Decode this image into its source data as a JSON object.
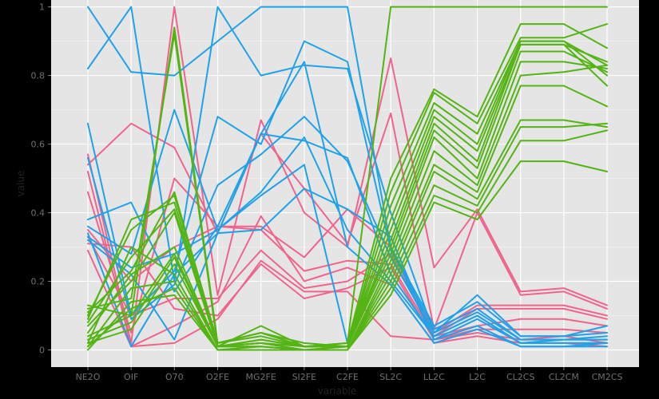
{
  "chart_data": {
    "type": "line",
    "subtype": "parallel-coordinates",
    "xlabel": "variable",
    "ylabel": "value",
    "categories": [
      "NE2O",
      "OIF",
      "O70",
      "O2FE",
      "MG2FE",
      "SI2FE",
      "C2FE",
      "SL2C",
      "LL2C",
      "L2C",
      "CL2CS",
      "CL2CM",
      "CM2CS"
    ],
    "ylim": [
      -0.05,
      1.02
    ],
    "yticks": [
      0,
      0.2,
      0.4,
      0.6,
      0.8,
      1
    ],
    "ytick_labels": [
      "0",
      "0.2",
      "0.4",
      "0.6",
      "0.8",
      "1"
    ],
    "grid": true,
    "legend": "none",
    "colors": {
      "background": "#e5e5e5",
      "grid": "#ffffff",
      "page": "#000000",
      "group_1": "#f0648c",
      "group_2": "#1fa2e8",
      "group_3": "#54b414"
    },
    "groups": [
      {
        "color": "#f0648c",
        "lines": [
          [
            0.57,
            0.02,
            1.0,
            0.16,
            0.67,
            0.4,
            0.3,
            0.85,
            0.24,
            0.41,
            0.17,
            0.18,
            0.13
          ],
          [
            0.54,
            0.66,
            0.59,
            0.34,
            0.63,
            0.47,
            0.31,
            0.69,
            0.06,
            0.4,
            0.16,
            0.17,
            0.12
          ],
          [
            0.46,
            0.05,
            0.5,
            0.36,
            0.36,
            0.27,
            0.41,
            0.3,
            0.05,
            0.13,
            0.13,
            0.13,
            0.1
          ],
          [
            0.35,
            0.2,
            0.3,
            0.36,
            0.35,
            0.23,
            0.26,
            0.25,
            0.04,
            0.12,
            0.12,
            0.12,
            0.09
          ],
          [
            0.33,
            0.1,
            0.15,
            0.15,
            0.29,
            0.18,
            0.2,
            0.28,
            0.04,
            0.07,
            0.09,
            0.09,
            0.07
          ],
          [
            0.31,
            0.3,
            0.12,
            0.1,
            0.25,
            0.15,
            0.18,
            0.24,
            0.03,
            0.06,
            0.06,
            0.06,
            0.05
          ],
          [
            0.29,
            0.01,
            0.02,
            0.09,
            0.26,
            0.17,
            0.17,
            0.04,
            0.03,
            0.05,
            0.03,
            0.04,
            0.02
          ],
          [
            0.52,
            0.01,
            0.07,
            0.14,
            0.39,
            0.2,
            0.24,
            0.19,
            0.02,
            0.04,
            0.02,
            0.02,
            0.01
          ]
        ]
      },
      {
        "color": "#1fa2e8",
        "lines": [
          [
            0.82,
            1.0,
            0.2,
            1.0,
            0.8,
            0.83,
            0.82,
            0.4,
            0.05,
            0.16,
            0.04,
            0.04,
            0.07
          ],
          [
            1.0,
            0.81,
            0.8,
            0.9,
            1.0,
            1.0,
            1.0,
            0.3,
            0.07,
            0.14,
            0.04,
            0.04,
            0.05
          ],
          [
            0.66,
            0.1,
            0.23,
            0.68,
            0.6,
            0.9,
            0.84,
            0.29,
            0.06,
            0.12,
            0.03,
            0.03,
            0.04
          ],
          [
            0.56,
            0.09,
            0.19,
            0.48,
            0.57,
            0.68,
            0.55,
            0.27,
            0.05,
            0.11,
            0.03,
            0.03,
            0.03
          ],
          [
            0.38,
            0.43,
            0.17,
            0.36,
            0.63,
            0.61,
            0.56,
            0.22,
            0.04,
            0.1,
            0.02,
            0.03,
            0.03
          ],
          [
            0.36,
            0.28,
            0.7,
            0.35,
            0.46,
            0.62,
            0.35,
            0.2,
            0.04,
            0.1,
            0.02,
            0.02,
            0.02
          ],
          [
            0.34,
            0.01,
            0.22,
            0.34,
            0.35,
            0.47,
            0.41,
            0.33,
            0.03,
            0.09,
            0.02,
            0.02,
            0.02
          ],
          [
            0.33,
            0.24,
            0.28,
            0.35,
            0.45,
            0.54,
            0.02,
            0.3,
            0.03,
            0.07,
            0.01,
            0.01,
            0.02
          ],
          [
            0.32,
            0.22,
            0.03,
            0.34,
            0.63,
            0.84,
            0.3,
            0.19,
            0.02,
            0.06,
            0.01,
            0.01,
            0.01
          ]
        ]
      },
      {
        "color": "#54b414",
        "lines": [
          [
            0.13,
            0.1,
            0.94,
            0.02,
            0.05,
            0.01,
            0.02,
            1.0,
            1.0,
            1.0,
            1.0,
            1.0,
            1.0
          ],
          [
            0.12,
            0.15,
            0.92,
            0.01,
            0.07,
            0.01,
            0.02,
            0.5,
            0.76,
            0.68,
            0.95,
            0.95,
            0.88
          ],
          [
            0.11,
            0.23,
            0.46,
            0.02,
            0.05,
            0.02,
            0.01,
            0.46,
            0.75,
            0.66,
            0.91,
            0.91,
            0.95
          ],
          [
            0.1,
            0.35,
            0.45,
            0.02,
            0.04,
            0.01,
            0.01,
            0.42,
            0.72,
            0.63,
            0.9,
            0.9,
            0.83
          ],
          [
            0.09,
            0.38,
            0.43,
            0.01,
            0.03,
            0.01,
            0.01,
            0.38,
            0.7,
            0.6,
            0.9,
            0.9,
            0.8
          ],
          [
            0.08,
            0.27,
            0.41,
            0.01,
            0.03,
            0.01,
            0.01,
            0.35,
            0.68,
            0.58,
            0.89,
            0.89,
            0.84
          ],
          [
            0.07,
            0.2,
            0.4,
            0.01,
            0.02,
            0.01,
            0.01,
            0.32,
            0.66,
            0.55,
            0.89,
            0.89,
            0.77
          ],
          [
            0.05,
            0.22,
            0.3,
            0.01,
            0.02,
            0.0,
            0.01,
            0.3,
            0.64,
            0.53,
            0.87,
            0.87,
            0.81
          ],
          [
            0.04,
            0.1,
            0.28,
            0.01,
            0.02,
            0.0,
            0.01,
            0.28,
            0.62,
            0.5,
            0.84,
            0.84,
            0.82
          ],
          [
            0.03,
            0.08,
            0.27,
            0.01,
            0.01,
            0.0,
            0.0,
            0.26,
            0.58,
            0.48,
            0.8,
            0.81,
            0.83
          ],
          [
            0.02,
            0.06,
            0.25,
            0.01,
            0.01,
            0.0,
            0.0,
            0.24,
            0.54,
            0.46,
            0.77,
            0.77,
            0.71
          ],
          [
            0.02,
            0.3,
            0.22,
            0.0,
            0.01,
            0.0,
            0.0,
            0.22,
            0.52,
            0.44,
            0.67,
            0.67,
            0.65
          ],
          [
            0.01,
            0.18,
            0.2,
            0.0,
            0.0,
            0.0,
            0.0,
            0.2,
            0.48,
            0.42,
            0.65,
            0.65,
            0.66
          ],
          [
            0.01,
            0.12,
            0.18,
            0.0,
            0.0,
            0.0,
            0.0,
            0.18,
            0.45,
            0.4,
            0.61,
            0.61,
            0.64
          ],
          [
            0.0,
            0.14,
            0.16,
            0.0,
            0.0,
            0.0,
            0.0,
            0.16,
            0.43,
            0.38,
            0.55,
            0.55,
            0.52
          ]
        ]
      }
    ]
  }
}
